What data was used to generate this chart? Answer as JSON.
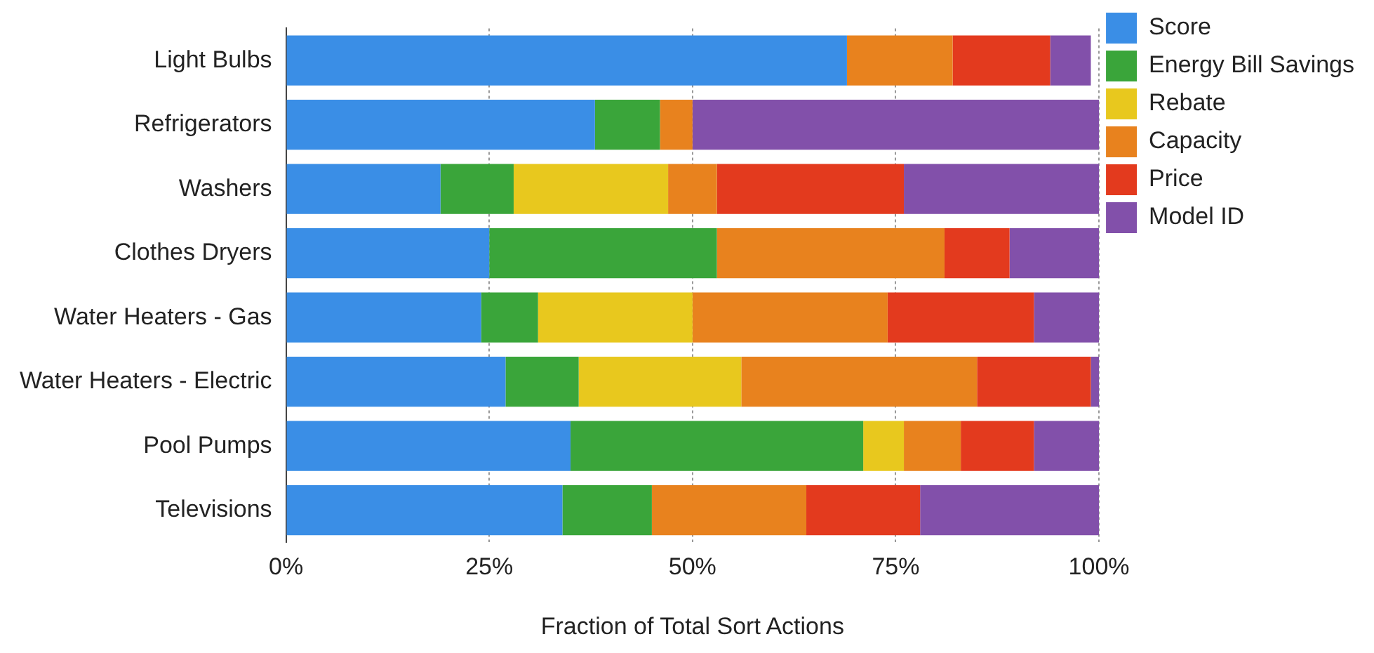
{
  "chart_data": {
    "type": "bar",
    "orientation": "horizontal",
    "stacked": true,
    "xlabel": "Fraction of Total Sort Actions",
    "categories": [
      "Light Bulbs",
      "Refrigerators",
      "Washers",
      "Clothes Dryers",
      "Water Heaters - Gas",
      "Water Heaters - Electric",
      "Pool Pumps",
      "Televisions"
    ],
    "series": [
      {
        "name": "Score",
        "color": "#3a8ee6",
        "values": [
          69,
          38,
          19,
          25,
          24,
          27,
          35,
          34
        ]
      },
      {
        "name": "Energy Bill Savings",
        "color": "#3aa53a",
        "values": [
          null,
          8,
          9,
          28,
          7,
          9,
          36,
          11
        ]
      },
      {
        "name": "Rebate",
        "color": "#e8c81e",
        "values": [
          null,
          null,
          19,
          null,
          19,
          20,
          5,
          null
        ]
      },
      {
        "name": "Capacity",
        "color": "#e8821e",
        "values": [
          13,
          4,
          6,
          28,
          24,
          29,
          7,
          19
        ]
      },
      {
        "name": "Price",
        "color": "#e33a1e",
        "values": [
          12,
          null,
          23,
          8,
          18,
          14,
          9,
          14
        ]
      },
      {
        "name": "Model ID",
        "color": "#8250aa",
        "values": [
          5,
          50,
          24,
          11,
          8,
          1,
          8,
          22
        ]
      }
    ],
    "xlim": [
      0,
      100
    ],
    "xticks": [
      {
        "value": 0,
        "label": "0%"
      },
      {
        "value": 25,
        "label": "25%"
      },
      {
        "value": 50,
        "label": "50%"
      },
      {
        "value": 75,
        "label": "75%"
      },
      {
        "value": 100,
        "label": "100%"
      }
    ],
    "grid": "x",
    "legend": "top right"
  }
}
